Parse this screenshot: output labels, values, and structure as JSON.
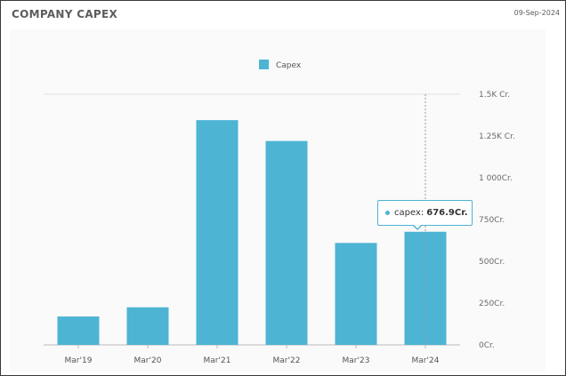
{
  "header": {
    "title": "COMPANY CAPEX",
    "date": "09-Sep-2024"
  },
  "colors": {
    "bar": "#4db4d4",
    "grid": "#e4e4e4",
    "axis": "#bbbbbb"
  },
  "tooltip": {
    "label": "capex:",
    "value": "676.9Cr."
  },
  "chart_data": {
    "type": "bar",
    "categories": [
      "Mar'19",
      "Mar'20",
      "Mar'21",
      "Mar'22",
      "Mar'23",
      "Mar'24"
    ],
    "series": [
      {
        "name": "Capex",
        "values": [
          170,
          225,
          1345,
          1220,
          610,
          676.9
        ]
      }
    ],
    "ylim": [
      0,
      1500
    ],
    "yticks": [
      0,
      250,
      500,
      750,
      1000,
      1250,
      1500
    ],
    "ytick_labels": [
      "0Cr.",
      "250Cr.",
      "500Cr.",
      "750Cr.",
      "1 000Cr.",
      "1.25K Cr.",
      "1.5K Cr."
    ],
    "title": "",
    "xlabel": "",
    "ylabel": "",
    "legend": "top-center",
    "grid": "top line only",
    "highlighted_category": "Mar'24"
  }
}
